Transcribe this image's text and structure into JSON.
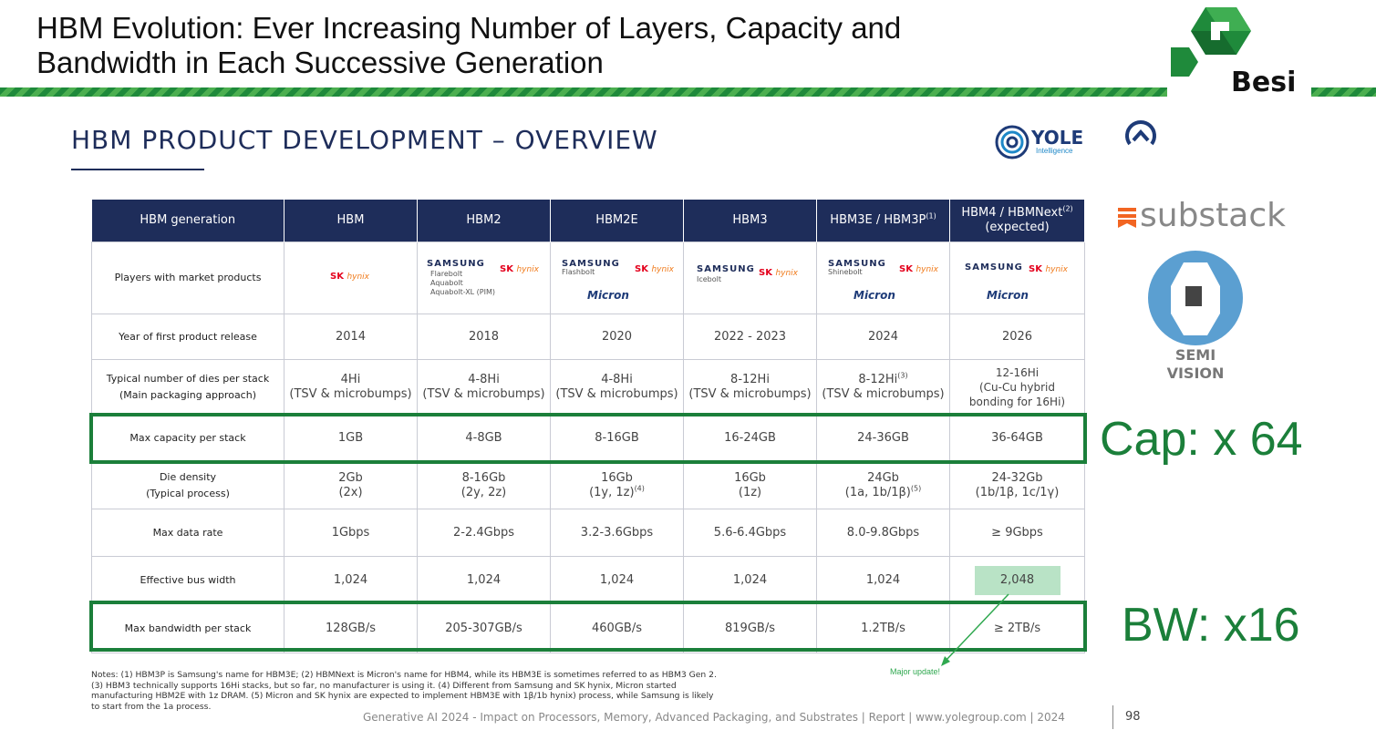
{
  "header": {
    "title_line1": "HBM Evolution: Ever Increasing Number of Layers, Capacity and",
    "title_line2": "Bandwidth in Each Successive Generation",
    "brand": "Besi",
    "accent_color": "#1f8a3b"
  },
  "slide": {
    "subtitle": "HBM PRODUCT DEVELOPMENT – OVERVIEW",
    "yole_name": "YOLE",
    "yole_sub": "Intelligence",
    "substack": "substack",
    "semivision": "SEMI VISION"
  },
  "table": {
    "headers": [
      "HBM generation",
      "HBM",
      "HBM2",
      "HBM2E",
      "HBM3",
      "HBM3E / HBM3P",
      "HBM4 / HBMNext"
    ],
    "header_note_hbm3e": "(1)",
    "header_note_hbm4": "(2)",
    "header_hbm4_sub": "(expected)",
    "rows": {
      "players": {
        "label": "Players with market products",
        "samsung": "SAMSUNG",
        "skhynix_sk": "SK",
        "skhynix_hy": "hynix",
        "micron": "Micron",
        "hbm2_brands": [
          "Flarebolt",
          "Aquabolt",
          "Aquabolt-XL (PIM)"
        ],
        "hbm2e_brands": [
          "Flashbolt"
        ],
        "hbm3_brands": [
          "Icebolt"
        ],
        "hbm3e_brands": [
          "Shinebolt"
        ]
      },
      "year": {
        "label": "Year of first product release",
        "values": [
          "2014",
          "2018",
          "2020",
          "2022 - 2023",
          "2024",
          "2026"
        ]
      },
      "dies": {
        "label_line1": "Typical number of dies per stack",
        "label_line2": "(Main packaging approach)",
        "values": [
          "4Hi",
          "4-8Hi",
          "4-8Hi",
          "8-12Hi",
          "8-12Hi",
          "12-16Hi"
        ],
        "note3": "(3)",
        "subs": [
          "(TSV & microbumps)",
          "(TSV & microbumps)",
          "(TSV & microbumps)",
          "(TSV & microbumps)",
          "(TSV & microbumps)"
        ],
        "hbm4_sub_line1": "(Cu-Cu hybrid",
        "hbm4_sub_line2": "bonding for 16Hi)"
      },
      "capacity": {
        "label": "Max capacity per stack",
        "values": [
          "1GB",
          "4-8GB",
          "8-16GB",
          "16-24GB",
          "24-36GB",
          "36-64GB"
        ]
      },
      "density": {
        "label_line1": "Die density",
        "label_line2": "(Typical process)",
        "values": [
          "2Gb",
          "8-16Gb",
          "16Gb",
          "16Gb",
          "24Gb",
          "24-32Gb"
        ],
        "subs": [
          "(2x)",
          "(2y, 2z)",
          "(1y, 1z)",
          "(1z)",
          "(1a, 1b/1β)",
          "(1b/1β, 1c/1γ)"
        ],
        "note4": "(4)",
        "note5": "(5)"
      },
      "datarate": {
        "label": "Max data rate",
        "values": [
          "1Gbps",
          "2-2.4Gbps",
          "3.2-3.6Gbps",
          "5.6-6.4Gbps",
          "8.0-9.8Gbps",
          "≥ 9Gbps"
        ]
      },
      "buswidth": {
        "label": "Effective bus width",
        "values": [
          "1,024",
          "1,024",
          "1,024",
          "1,024",
          "1,024",
          "2,048"
        ]
      },
      "bandwidth": {
        "label": "Max bandwidth per stack",
        "values": [
          "128GB/s",
          "205-307GB/s",
          "460GB/s",
          "819GB/s",
          "1.2TB/s",
          "≥ 2TB/s"
        ]
      }
    }
  },
  "annotations": {
    "capacity": "Cap: x 64",
    "bandwidth": "BW: x16",
    "major_update": "Major update!"
  },
  "notes": "Notes: (1) HBM3P is Samsung's name for HBM3E; (2) HBMNext is Micron's name for HBM4, while its HBM3E is sometimes referred to as HBM3 Gen 2. (3) HBM3 technically supports 16Hi stacks, but so far, no manufacturer is using it. (4) Different from Samsung and SK hynix, Micron started manufacturing HBM2E with 1z DRAM. (5) Micron and SK hynix are expected to implement HBM3E with 1β/1b hynix) process, while Samsung is likely to start from the 1a process.",
  "footer": {
    "text": "Generative AI 2024 - Impact on Processors, Memory, Advanced Packaging, and Substrates | Report | www.yolegroup.com | 2024",
    "page": "98"
  }
}
